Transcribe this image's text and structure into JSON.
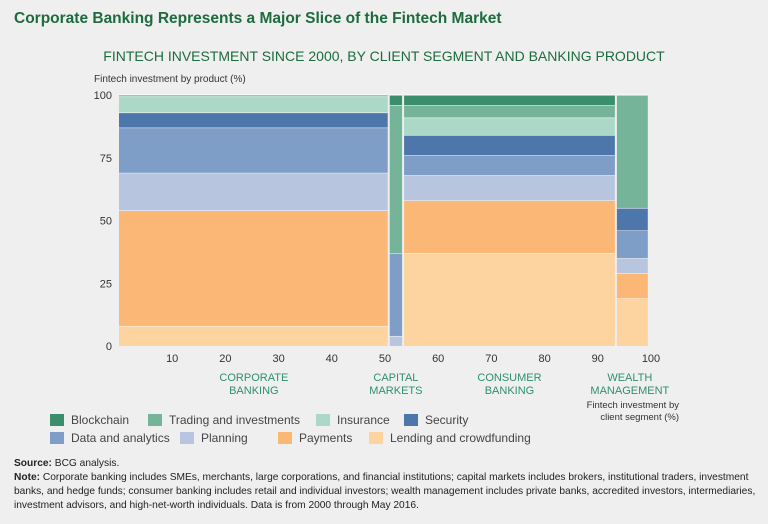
{
  "header": "Corporate Banking Represents a Major Slice of the Fintech Market",
  "chart_data": {
    "type": "mekko",
    "title": "FINTECH INVESTMENT SINCE 2000, BY CLIENT SEGMENT AND BANKING PRODUCT",
    "ylabel": "Fintech investment by product (%)",
    "xlabel": "Fintech investment by client segment (%)",
    "ylim": [
      0,
      100
    ],
    "xlim": [
      0,
      100
    ],
    "yticks": [
      "0",
      "25",
      "50",
      "75",
      "100"
    ],
    "xticks": [
      "10",
      "20",
      "30",
      "40",
      "50",
      "60",
      "70",
      "80",
      "90",
      "100"
    ],
    "xtick_values": [
      10,
      20,
      30,
      40,
      50,
      60,
      70,
      80,
      90,
      100
    ],
    "categories": [
      "CORPORATE BANKING",
      "CAPITAL MARKETS",
      "CONSUMER BANKING",
      "WEALTH MANAGEMENT"
    ],
    "category_lines": [
      [
        "CORPORATE",
        "BANKING"
      ],
      [
        "CAPITAL",
        "MARKETS"
      ],
      [
        "CONSUMER",
        "BANKING"
      ],
      [
        "WEALTH",
        "MANAGEMENT"
      ]
    ],
    "widths": [
      50.7,
      2.7,
      40.0,
      6.0
    ],
    "series": [
      {
        "name": "Lending and crowdfunding",
        "color": "#fdd3a0",
        "values": [
          8,
          0,
          37,
          19
        ]
      },
      {
        "name": "Payments",
        "color": "#fbb775",
        "values": [
          46,
          0,
          21,
          10
        ]
      },
      {
        "name": "Planning",
        "color": "#b7c5df",
        "values": [
          15,
          4,
          10,
          6
        ]
      },
      {
        "name": "Data and analytics",
        "color": "#7e9dc7",
        "values": [
          18,
          33,
          8,
          11
        ]
      },
      {
        "name": "Security",
        "color": "#4d76aa",
        "values": [
          6,
          0,
          8,
          9
        ]
      },
      {
        "name": "Insurance",
        "color": "#acd8c8",
        "values": [
          6,
          0,
          7,
          0
        ]
      },
      {
        "name": "Trading and investments",
        "color": "#76b499",
        "values": [
          0.6,
          59,
          5,
          45
        ]
      },
      {
        "name": "Blockchain",
        "color": "#3a8e6b",
        "values": [
          0.4,
          4,
          4,
          0
        ]
      }
    ],
    "legend_order": [
      "Blockchain",
      "Trading and investments",
      "Insurance",
      "Security",
      "Data and analytics",
      "Planning",
      "Payments",
      "Lending and crowdfunding"
    ]
  },
  "footer": {
    "source_label": "Source:",
    "source_text": " BCG analysis.",
    "note_label": "Note:",
    "note_text": " Corporate banking includes SMEs, merchants, large corporations, and financial institutions; capital markets includes brokers, institutional traders, investment banks, and hedge funds; consumer banking includes retail and individual investors; wealth management includes private banks, accredited investors, intermediaries, investment advisors, and high-net-worth individuals. Data is from 2000 through May 2016."
  },
  "colors": {
    "accent": "#1d6b3e",
    "axis_text": "#333333",
    "category_text": "#2e8f72"
  }
}
